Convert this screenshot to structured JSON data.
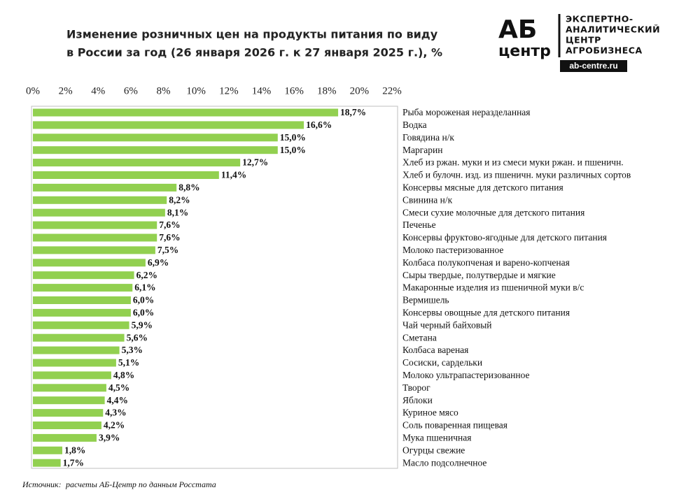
{
  "chart_data": {
    "type": "hbar",
    "title": [
      "Изменение розничных цен на продукты питания по виду",
      "в России за год (26 января 2026 г. к 27 января 2025 г.), %"
    ],
    "categories": [
      "Рыба мороженая неразделанная",
      "Водка",
      "Говядина н/к",
      "Маргарин",
      "Хлеб из ржан. муки и из смеси муки ржан. и пшеничн.",
      "Хлеб и булочн. изд. из пшеничн. муки различных сортов",
      "Консервы мясные для детского питания",
      "Свинина н/к",
      "Смеси сухие молочные для детского питания",
      "Печенье",
      "Консервы фруктово-ягодные для детского питания",
      "Молоко пастеризованное",
      "Колбаса полукопченая и варено-копченая",
      "Сыры твердые, полутвердые и мягкие",
      "Макаронные изделия из пшеничной муки в/с",
      "Вермишель",
      "Консервы овощные для детского питания",
      "Чай черный байховый",
      "Сметана",
      "Колбаса вареная",
      "Сосиски, сардельки",
      "Молоко ультрапастеризованное",
      "Творог",
      "Яблоки",
      "Куриное мясо",
      "Соль поваренная пищевая",
      "Мука пшеничная",
      "Огурцы свежие",
      "Масло подсолнечное"
    ],
    "values": [
      18.7,
      16.6,
      15.0,
      15.0,
      12.7,
      11.4,
      8.8,
      8.2,
      8.1,
      7.6,
      7.6,
      7.5,
      6.9,
      6.2,
      6.1,
      6.0,
      6.0,
      5.9,
      5.6,
      5.3,
      5.1,
      4.8,
      4.5,
      4.4,
      4.3,
      4.2,
      3.9,
      1.8,
      1.7
    ],
    "value_labels": [
      "18,7%",
      "16,6%",
      "15,0%",
      "15,0%",
      "12,7%",
      "11,4%",
      "8,8%",
      "8,2%",
      "8,1%",
      "7,6%",
      "7,6%",
      "7,5%",
      "6,9%",
      "6,2%",
      "6,1%",
      "6,0%",
      "6,0%",
      "5,9%",
      "5,6%",
      "5,3%",
      "5,1%",
      "4,8%",
      "4,5%",
      "4,4%",
      "4,3%",
      "4,2%",
      "3,9%",
      "1,8%",
      "1,7%"
    ],
    "color": "#92d050",
    "xlim": [
      0,
      22
    ],
    "xticks": [
      {
        "value": 0,
        "label": "0%"
      },
      {
        "value": 2,
        "label": "2%"
      },
      {
        "value": 4,
        "label": "4%"
      },
      {
        "value": 6,
        "label": "6%"
      },
      {
        "value": 8,
        "label": "8%"
      },
      {
        "value": 10,
        "label": "10%"
      },
      {
        "value": 12,
        "label": "12%"
      },
      {
        "value": 14,
        "label": "14%"
      },
      {
        "value": 16,
        "label": "16%"
      },
      {
        "value": 18,
        "label": "18%"
      },
      {
        "value": 20,
        "label": "20%"
      },
      {
        "value": 22,
        "label": "22%"
      }
    ],
    "grid": false,
    "source": [
      "Источник:",
      "расчеты АБ-Центр по данным Росстата"
    ]
  },
  "logo": {
    "mark": [
      "АБ",
      "центр"
    ],
    "lines": [
      "ЭКСПЕРТНО-",
      "АНАЛИТИЧЕСКИЙ",
      "ЦЕНТР",
      "АГРОБИЗНЕСА"
    ],
    "url": "ab-centre.ru"
  }
}
